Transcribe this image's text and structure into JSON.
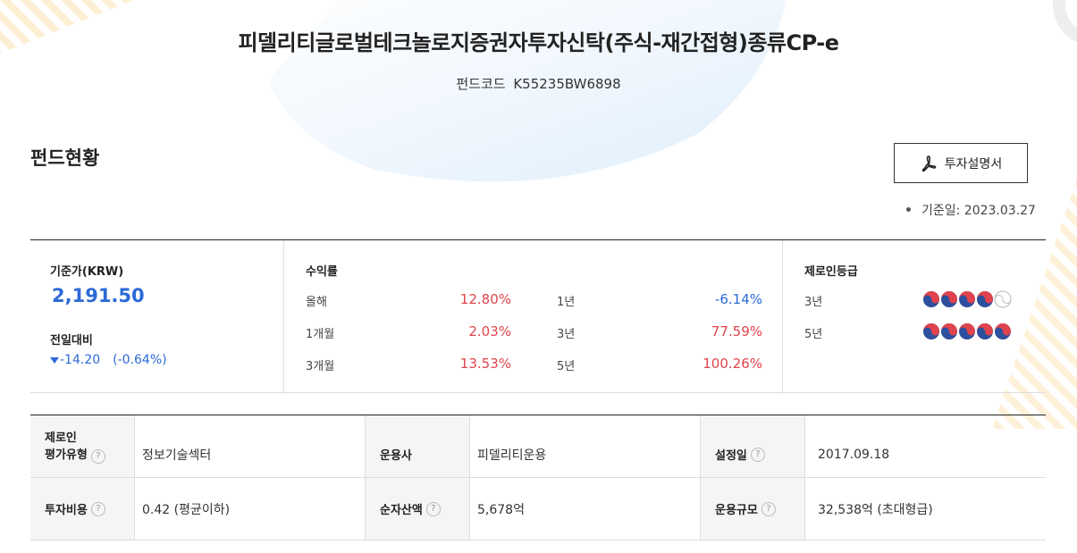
{
  "fund": {
    "title": "피델리티글로벌테크놀로지증권자투자신탁(주식-재간접형)종류CP-e",
    "code_label": "펀드코드",
    "code_value": "K55235BW6898"
  },
  "status": {
    "section_title": "펀드현황",
    "prospectus_button": "투자설명서",
    "base_date": "기준일: 2023.03.27"
  },
  "nav": {
    "label": "기준가(KRW)",
    "value": "2,191.50",
    "change_label": "전일대비",
    "change_value": "-14.20",
    "change_pct": "(-0.64%)"
  },
  "returns": {
    "label": "수익률",
    "items": [
      {
        "period": "올해",
        "value": "12.80%"
      },
      {
        "period": "1개월",
        "value": "2.03%"
      },
      {
        "period": "3개월",
        "value": "13.53%"
      },
      {
        "period": "1년",
        "value": "-6.14%"
      },
      {
        "period": "3년",
        "value": "77.59%"
      },
      {
        "period": "5년",
        "value": "100.26%"
      }
    ]
  },
  "rating": {
    "label": "제로인등급",
    "rows": [
      {
        "period": "3년",
        "score": 4,
        "max": 5
      },
      {
        "period": "5년",
        "score": 5,
        "max": 5
      }
    ]
  },
  "details": {
    "row1": {
      "type_label_line1": "제로인",
      "type_label_line2": "평가유형",
      "type_value": "정보기술섹터",
      "manager_label": "운용사",
      "manager_value": "피델리티운용",
      "inception_label": "설정일",
      "inception_value": "2017.09.18"
    },
    "row2": {
      "cost_label": "투자비용",
      "cost_value": "0.42 (평균이하)",
      "net_assets_label": "순자산액",
      "net_assets_value": "5,678억",
      "aum_label": "운용규모",
      "aum_value": "32,538억 (초대형급)"
    },
    "help_glyph": "?"
  },
  "colors": {
    "positive": "#e0434d",
    "negative": "#2c6ad7",
    "accent": "#2c6ad7"
  }
}
